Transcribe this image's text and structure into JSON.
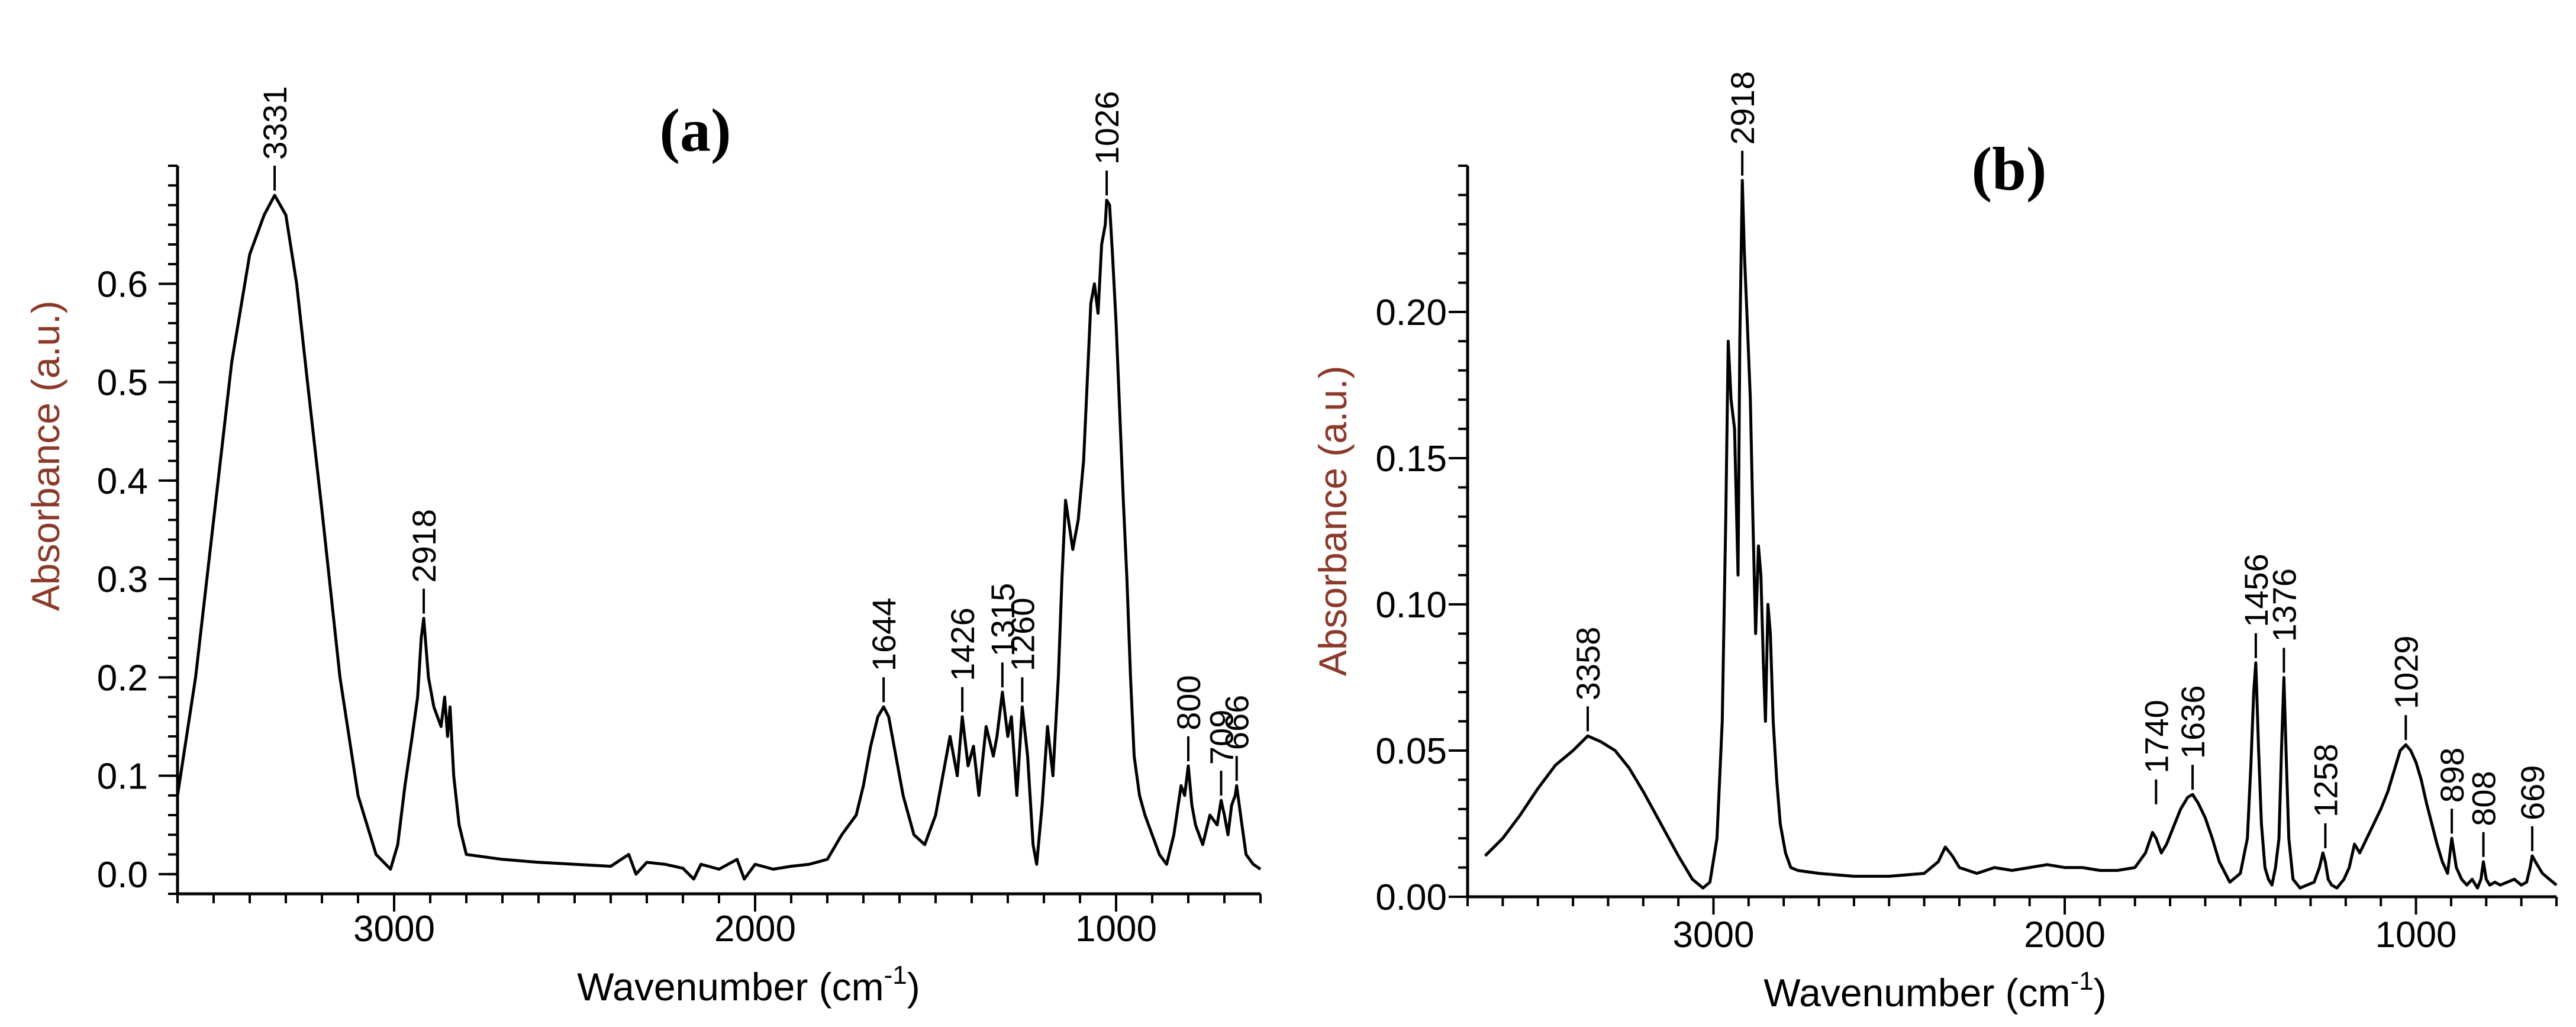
{
  "colors": {
    "ylabel": "#8B3A2A",
    "line": "#000000",
    "axis": "#000000"
  },
  "chart_data": [
    {
      "type": "line",
      "title": "(a)",
      "xlabel": "Wavenumber (cm",
      "xlabel_sup": "-1",
      "xlabel_close": ")",
      "ylabel": "Absorbance (a.u.)",
      "xlim": [
        3600,
        600
      ],
      "ylim": [
        -0.02,
        0.72
      ],
      "x_reversed": true,
      "xticks": [
        3000,
        2000,
        1000
      ],
      "xtick_labels": [
        "3000",
        "2000",
        "1000"
      ],
      "yticks": [
        0.0,
        0.1,
        0.2,
        0.3,
        0.4,
        0.5,
        0.6
      ],
      "ytick_labels": [
        "0.0",
        "0.1",
        "0.2",
        "0.3",
        "0.4",
        "0.5",
        "0.6"
      ],
      "peaks": [
        {
          "x": 3331,
          "y": 0.69,
          "label": "3331"
        },
        {
          "x": 2918,
          "y": 0.26,
          "label": "2918"
        },
        {
          "x": 1644,
          "y": 0.17,
          "label": "1644"
        },
        {
          "x": 1426,
          "y": 0.16,
          "label": "1426"
        },
        {
          "x": 1315,
          "y": 0.185,
          "label": "1315"
        },
        {
          "x": 1260,
          "y": 0.17,
          "label": "1260"
        },
        {
          "x": 1026,
          "y": 0.685,
          "label": "1026"
        },
        {
          "x": 800,
          "y": 0.11,
          "label": "800"
        },
        {
          "x": 709,
          "y": 0.075,
          "label": "709"
        },
        {
          "x": 666,
          "y": 0.09,
          "label": "666"
        }
      ],
      "series": [
        {
          "x": [
            3600,
            3550,
            3500,
            3450,
            3400,
            3360,
            3331,
            3300,
            3270,
            3240,
            3200,
            3150,
            3100,
            3050,
            3010,
            2990,
            2970,
            2950,
            2935,
            2925,
            2918,
            2905,
            2890,
            2870,
            2860,
            2852,
            2845,
            2835,
            2820,
            2800,
            2760,
            2700,
            2600,
            2500,
            2400,
            2350,
            2330,
            2300,
            2250,
            2200,
            2170,
            2150,
            2100,
            2050,
            2030,
            2000,
            1950,
            1900,
            1850,
            1800,
            1760,
            1740,
            1720,
            1700,
            1680,
            1660,
            1644,
            1630,
            1610,
            1590,
            1560,
            1530,
            1500,
            1480,
            1460,
            1440,
            1426,
            1410,
            1395,
            1380,
            1360,
            1340,
            1330,
            1315,
            1300,
            1290,
            1275,
            1260,
            1245,
            1230,
            1220,
            1205,
            1190,
            1175,
            1160,
            1150,
            1140,
            1120,
            1105,
            1090,
            1080,
            1070,
            1060,
            1050,
            1040,
            1030,
            1026,
            1018,
            1010,
            1000,
            990,
            980,
            970,
            960,
            950,
            935,
            920,
            900,
            880,
            860,
            840,
            820,
            810,
            800,
            790,
            780,
            760,
            740,
            720,
            709,
            700,
            690,
            680,
            670,
            666,
            655,
            640,
            620,
            600
          ],
          "y": [
            0.08,
            0.2,
            0.36,
            0.52,
            0.63,
            0.67,
            0.69,
            0.67,
            0.6,
            0.5,
            0.37,
            0.2,
            0.08,
            0.02,
            0.005,
            0.03,
            0.09,
            0.14,
            0.18,
            0.24,
            0.26,
            0.2,
            0.17,
            0.15,
            0.18,
            0.14,
            0.17,
            0.1,
            0.05,
            0.02,
            0.018,
            0.015,
            0.012,
            0.01,
            0.008,
            0.02,
            0.0,
            0.012,
            0.01,
            0.006,
            -0.005,
            0.01,
            0.005,
            0.015,
            -0.005,
            0.01,
            0.005,
            0.008,
            0.01,
            0.015,
            0.04,
            0.05,
            0.06,
            0.09,
            0.13,
            0.16,
            0.17,
            0.16,
            0.12,
            0.08,
            0.04,
            0.03,
            0.06,
            0.1,
            0.14,
            0.1,
            0.16,
            0.11,
            0.13,
            0.08,
            0.15,
            0.12,
            0.14,
            0.185,
            0.14,
            0.16,
            0.08,
            0.17,
            0.12,
            0.03,
            0.01,
            0.07,
            0.15,
            0.1,
            0.2,
            0.3,
            0.38,
            0.33,
            0.36,
            0.42,
            0.5,
            0.58,
            0.6,
            0.57,
            0.64,
            0.66,
            0.685,
            0.68,
            0.63,
            0.56,
            0.47,
            0.38,
            0.3,
            0.2,
            0.12,
            0.08,
            0.06,
            0.04,
            0.02,
            0.01,
            0.04,
            0.09,
            0.08,
            0.11,
            0.07,
            0.05,
            0.03,
            0.06,
            0.05,
            0.075,
            0.06,
            0.04,
            0.07,
            0.08,
            0.09,
            0.06,
            0.02,
            0.01,
            0.005
          ]
        }
      ]
    },
    {
      "type": "line",
      "title": "(b)",
      "xlabel": "Wavenumber (cm",
      "xlabel_sup": "-1",
      "xlabel_close": ")",
      "ylabel": "Absorbance (a.u.)",
      "xlim": [
        3700,
        600
      ],
      "ylim": [
        0.0,
        0.25
      ],
      "x_reversed": true,
      "xticks": [
        3000,
        2000,
        1000
      ],
      "xtick_labels": [
        "3000",
        "2000",
        "1000"
      ],
      "yticks": [
        0.0,
        0.05,
        0.1,
        0.15,
        0.2
      ],
      "ytick_labels": [
        "0.00",
        "0.05",
        "0.10",
        "0.15",
        "0.20"
      ],
      "peaks": [
        {
          "x": 3358,
          "y": 0.055,
          "label": "3358"
        },
        {
          "x": 2918,
          "y": 0.245,
          "label": "2918"
        },
        {
          "x": 1740,
          "y": 0.03,
          "label": "1740"
        },
        {
          "x": 1636,
          "y": 0.035,
          "label": "1636"
        },
        {
          "x": 1456,
          "y": 0.08,
          "label": "1456"
        },
        {
          "x": 1376,
          "y": 0.075,
          "label": "1376"
        },
        {
          "x": 1258,
          "y": 0.015,
          "label": "1258"
        },
        {
          "x": 1029,
          "y": 0.052,
          "label": "1029"
        },
        {
          "x": 898,
          "y": 0.02,
          "label": "898"
        },
        {
          "x": 808,
          "y": 0.012,
          "label": "808"
        },
        {
          "x": 669,
          "y": 0.014,
          "label": "669"
        }
      ],
      "series": [
        {
          "x": [
            3650,
            3600,
            3550,
            3500,
            3450,
            3400,
            3358,
            3320,
            3280,
            3240,
            3200,
            3150,
            3100,
            3060,
            3030,
            3010,
            2990,
            2975,
            2965,
            2958,
            2950,
            2940,
            2930,
            2925,
            2918,
            2912,
            2905,
            2895,
            2888,
            2880,
            2872,
            2865,
            2858,
            2852,
            2845,
            2838,
            2830,
            2820,
            2810,
            2795,
            2780,
            2760,
            2700,
            2600,
            2500,
            2400,
            2360,
            2340,
            2320,
            2300,
            2250,
            2200,
            2150,
            2100,
            2050,
            2000,
            1950,
            1900,
            1850,
            1800,
            1770,
            1750,
            1740,
            1725,
            1710,
            1690,
            1670,
            1650,
            1636,
            1620,
            1600,
            1580,
            1560,
            1530,
            1500,
            1480,
            1470,
            1462,
            1456,
            1448,
            1440,
            1430,
            1420,
            1410,
            1400,
            1390,
            1383,
            1376,
            1370,
            1362,
            1350,
            1330,
            1310,
            1290,
            1275,
            1265,
            1258,
            1250,
            1240,
            1225,
            1205,
            1190,
            1175,
            1160,
            1140,
            1120,
            1100,
            1080,
            1060,
            1045,
            1029,
            1015,
            1000,
            985,
            970,
            955,
            940,
            925,
            910,
            898,
            885,
            870,
            855,
            840,
            825,
            815,
            808,
            800,
            790,
            775,
            760,
            740,
            720,
            700,
            685,
            675,
            669,
            660,
            650,
            640,
            620,
            600
          ],
          "y": [
            0.014,
            0.02,
            0.028,
            0.037,
            0.045,
            0.05,
            0.055,
            0.053,
            0.05,
            0.044,
            0.036,
            0.025,
            0.014,
            0.006,
            0.003,
            0.005,
            0.02,
            0.06,
            0.13,
            0.19,
            0.17,
            0.16,
            0.11,
            0.19,
            0.245,
            0.22,
            0.2,
            0.17,
            0.13,
            0.09,
            0.12,
            0.11,
            0.08,
            0.06,
            0.1,
            0.09,
            0.06,
            0.04,
            0.025,
            0.015,
            0.01,
            0.009,
            0.008,
            0.007,
            0.007,
            0.008,
            0.012,
            0.017,
            0.014,
            0.01,
            0.008,
            0.01,
            0.009,
            0.01,
            0.011,
            0.01,
            0.01,
            0.009,
            0.009,
            0.01,
            0.015,
            0.022,
            0.02,
            0.015,
            0.018,
            0.024,
            0.03,
            0.034,
            0.035,
            0.032,
            0.027,
            0.02,
            0.012,
            0.005,
            0.008,
            0.02,
            0.045,
            0.07,
            0.08,
            0.05,
            0.025,
            0.01,
            0.006,
            0.004,
            0.01,
            0.02,
            0.05,
            0.075,
            0.05,
            0.02,
            0.006,
            0.003,
            0.004,
            0.005,
            0.01,
            0.015,
            0.012,
            0.006,
            0.004,
            0.003,
            0.006,
            0.01,
            0.018,
            0.015,
            0.02,
            0.025,
            0.03,
            0.036,
            0.044,
            0.05,
            0.052,
            0.05,
            0.046,
            0.04,
            0.032,
            0.025,
            0.018,
            0.012,
            0.008,
            0.02,
            0.01,
            0.006,
            0.004,
            0.006,
            0.003,
            0.006,
            0.012,
            0.006,
            0.004,
            0.005,
            0.004,
            0.005,
            0.006,
            0.004,
            0.005,
            0.01,
            0.014,
            0.012,
            0.01,
            0.008,
            0.006,
            0.004
          ]
        }
      ]
    }
  ]
}
